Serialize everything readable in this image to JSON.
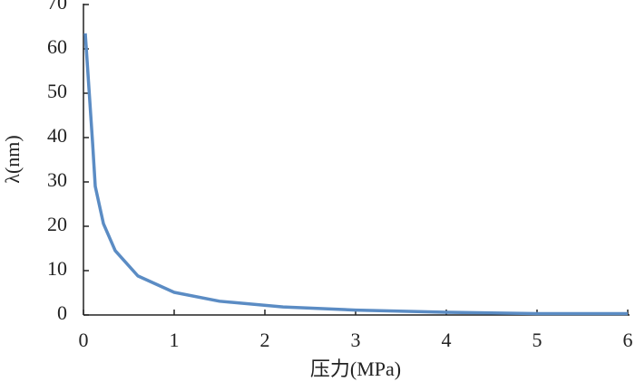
{
  "chart_data": {
    "type": "line",
    "x_label": "压力(MPa)",
    "y_label": "λ(nm)",
    "x": [
      0.02,
      0.1,
      0.13,
      0.22,
      0.35,
      0.6,
      1.0,
      1.5,
      2.2,
      3.0,
      4.0,
      5.0,
      6.0
    ],
    "series": [
      {
        "color": "#5b8cc4",
        "values": [
          63.5,
          39,
          29,
          20.6,
          14.5,
          8.8,
          5.1,
          3.1,
          1.8,
          1.1,
          0.6,
          0.3,
          0.3
        ]
      }
    ],
    "xlim": [
      0,
      6
    ],
    "xticks": [
      0,
      1,
      2,
      3,
      4,
      5,
      6
    ],
    "ylim": [
      0,
      70
    ],
    "yticks": [
      0,
      10,
      20,
      30,
      40,
      50,
      60,
      70
    ]
  }
}
